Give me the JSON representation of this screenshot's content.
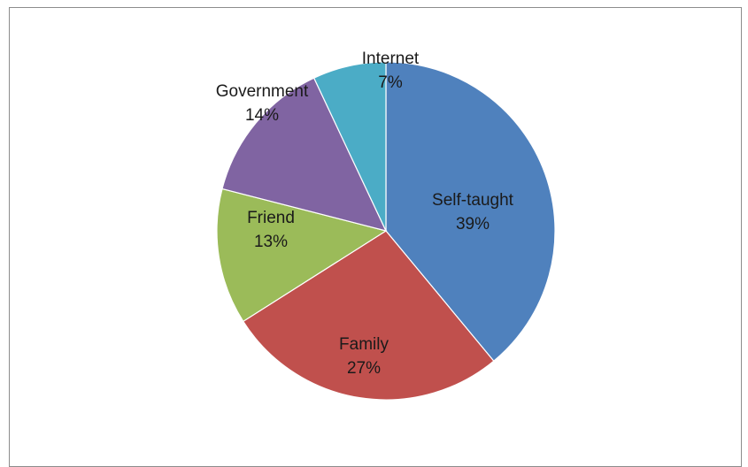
{
  "chart_data": {
    "type": "pie",
    "title": "",
    "legend": "none",
    "slices": [
      {
        "label": "Self-taught",
        "value": 39,
        "display": "39%",
        "color": "#4f81bd"
      },
      {
        "label": "Family",
        "value": 27,
        "display": "27%",
        "color": "#c0504d"
      },
      {
        "label": "Friend",
        "value": 13,
        "display": "13%",
        "color": "#9bbb59"
      },
      {
        "label": "Government",
        "value": 14,
        "display": "14%",
        "color": "#8064a2"
      },
      {
        "label": "Internet",
        "value": 7,
        "display": "7%",
        "color": "#4bacc6"
      }
    ]
  }
}
